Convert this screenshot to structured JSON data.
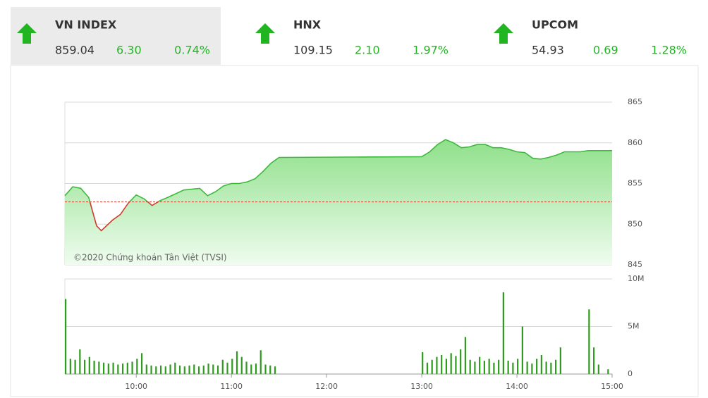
{
  "indices": [
    {
      "name": "VN INDEX",
      "value": "859.04",
      "change": "6.30",
      "percent": "0.74%"
    },
    {
      "name": "HNX",
      "value": "109.15",
      "change": "2.10",
      "percent": "1.97%"
    },
    {
      "name": "UPCOM",
      "value": "54.93",
      "change": "0.69",
      "percent": "1.28%"
    }
  ],
  "chart_data": [
    {
      "type": "line",
      "annotation": "©2020 Chứng khoán Tân Việt (TVSI)",
      "x": [
        "09:15",
        "09:20",
        "09:25",
        "09:30",
        "09:35",
        "09:38",
        "09:45",
        "09:50",
        "09:55",
        "10:00",
        "10:05",
        "10:10",
        "10:15",
        "10:20",
        "10:30",
        "10:40",
        "10:45",
        "10:50",
        "10:55",
        "11:00",
        "11:05",
        "11:10",
        "11:15",
        "11:20",
        "11:25",
        "11:30",
        "13:00",
        "13:05",
        "13:10",
        "13:15",
        "13:20",
        "13:25",
        "13:30",
        "13:35",
        "13:40",
        "13:45",
        "13:50",
        "13:55",
        "14:00",
        "14:05",
        "14:10",
        "14:15",
        "14:20",
        "14:25",
        "14:30",
        "14:35",
        "14:40",
        "14:45",
        "15:00"
      ],
      "series": [
        {
          "name": "VN INDEX",
          "color": "#3cb83c",
          "values": [
            853.5,
            854.6,
            854.4,
            853.3,
            849.8,
            849.2,
            850.5,
            851.2,
            852.6,
            853.6,
            853.1,
            852.3,
            852.9,
            853.3,
            854.2,
            854.4,
            853.5,
            854.0,
            854.7,
            855.0,
            855.0,
            855.2,
            855.6,
            856.5,
            857.5,
            858.2,
            858.3,
            858.9,
            859.8,
            860.4,
            860.0,
            859.4,
            859.5,
            859.8,
            859.8,
            859.4,
            859.4,
            859.2,
            858.9,
            858.8,
            858.1,
            858.0,
            858.2,
            858.5,
            858.9,
            858.9,
            858.9,
            859.04,
            859.04
          ]
        }
      ],
      "reference": 852.74,
      "reference_color": "#d03a2a",
      "xlim": [
        "09:15",
        "15:00"
      ],
      "ylim": [
        845,
        865
      ],
      "yticks": [
        845,
        850,
        855,
        860,
        865
      ],
      "grid": true
    },
    {
      "type": "bar",
      "x": [
        "09:15",
        "09:18",
        "09:21",
        "09:24",
        "09:27",
        "09:30",
        "09:33",
        "09:36",
        "09:39",
        "09:42",
        "09:45",
        "09:48",
        "09:51",
        "09:54",
        "09:57",
        "10:00",
        "10:03",
        "10:06",
        "10:09",
        "10:12",
        "10:15",
        "10:18",
        "10:21",
        "10:24",
        "10:27",
        "10:30",
        "10:33",
        "10:36",
        "10:39",
        "10:42",
        "10:45",
        "10:48",
        "10:51",
        "10:54",
        "10:57",
        "11:00",
        "11:03",
        "11:06",
        "11:09",
        "11:12",
        "11:15",
        "11:18",
        "11:21",
        "11:24",
        "11:27",
        "13:00",
        "13:03",
        "13:06",
        "13:09",
        "13:12",
        "13:15",
        "13:18",
        "13:21",
        "13:24",
        "13:27",
        "13:30",
        "13:33",
        "13:36",
        "13:39",
        "13:42",
        "13:45",
        "13:48",
        "13:51",
        "13:54",
        "13:57",
        "14:00",
        "14:03",
        "14:06",
        "14:09",
        "14:12",
        "14:15",
        "14:18",
        "14:21",
        "14:24",
        "14:27",
        "14:45",
        "14:48",
        "14:51",
        "14:57"
      ],
      "values": [
        7.9,
        1.6,
        1.5,
        2.6,
        1.5,
        1.8,
        1.4,
        1.3,
        1.2,
        1.1,
        1.2,
        1.0,
        1.1,
        1.2,
        1.3,
        1.6,
        2.2,
        1.0,
        0.9,
        0.8,
        0.9,
        0.8,
        1.0,
        1.2,
        0.9,
        0.8,
        0.9,
        1.0,
        0.8,
        0.9,
        1.1,
        1.0,
        0.9,
        1.5,
        1.2,
        1.6,
        2.4,
        1.8,
        1.3,
        1.0,
        1.1,
        2.5,
        1.0,
        0.9,
        0.8,
        2.3,
        1.2,
        1.5,
        1.8,
        2.0,
        1.6,
        2.2,
        1.9,
        2.6,
        3.9,
        1.5,
        1.3,
        1.8,
        1.4,
        1.6,
        1.2,
        1.5,
        8.6,
        1.4,
        1.2,
        1.6,
        5.0,
        1.3,
        1.1,
        1.6,
        2.0,
        1.3,
        1.2,
        1.5,
        2.8,
        6.8,
        2.8,
        1.0,
        0.5
      ],
      "color": "#2e9a1e",
      "xlim": [
        "09:15",
        "15:00"
      ],
      "xticks": [
        "10:00",
        "11:00",
        "12:00",
        "13:00",
        "14:00",
        "15:00"
      ],
      "ylim": [
        0,
        10
      ],
      "yticks": [
        0,
        {
          "value": 5,
          "label": "5M"
        },
        {
          "value": 10,
          "label": "10M"
        }
      ],
      "grid": true
    }
  ]
}
